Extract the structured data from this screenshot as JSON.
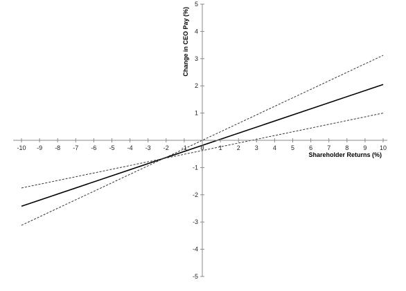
{
  "chart_data": {
    "type": "line",
    "title": "",
    "xlabel": "Shareholder Returns (%)",
    "ylabel": "Change in CEO Pay (%)",
    "xlim": [
      -10,
      10
    ],
    "ylim": [
      -5,
      5
    ],
    "x_ticks": [
      -10,
      -9,
      -8,
      -7,
      -6,
      -5,
      -4,
      -3,
      -2,
      -1,
      0,
      1,
      2,
      3,
      4,
      5,
      6,
      7,
      8,
      9,
      10
    ],
    "y_ticks": [
      -5,
      -4,
      -3,
      -2,
      -1,
      1,
      2,
      3,
      4,
      5
    ],
    "grid": false,
    "legend": "none",
    "series": [
      {
        "style": "solid",
        "color": "#000000",
        "x": [
          -10,
          10
        ],
        "y": [
          -2.42,
          2.05
        ]
      },
      {
        "style": "dashed",
        "color": "#333333",
        "x": [
          -10,
          10
        ],
        "y": [
          -3.12,
          3.12
        ]
      },
      {
        "style": "dashed",
        "color": "#333333",
        "x": [
          -10,
          10
        ],
        "y": [
          -1.75,
          1.0
        ]
      }
    ]
  }
}
